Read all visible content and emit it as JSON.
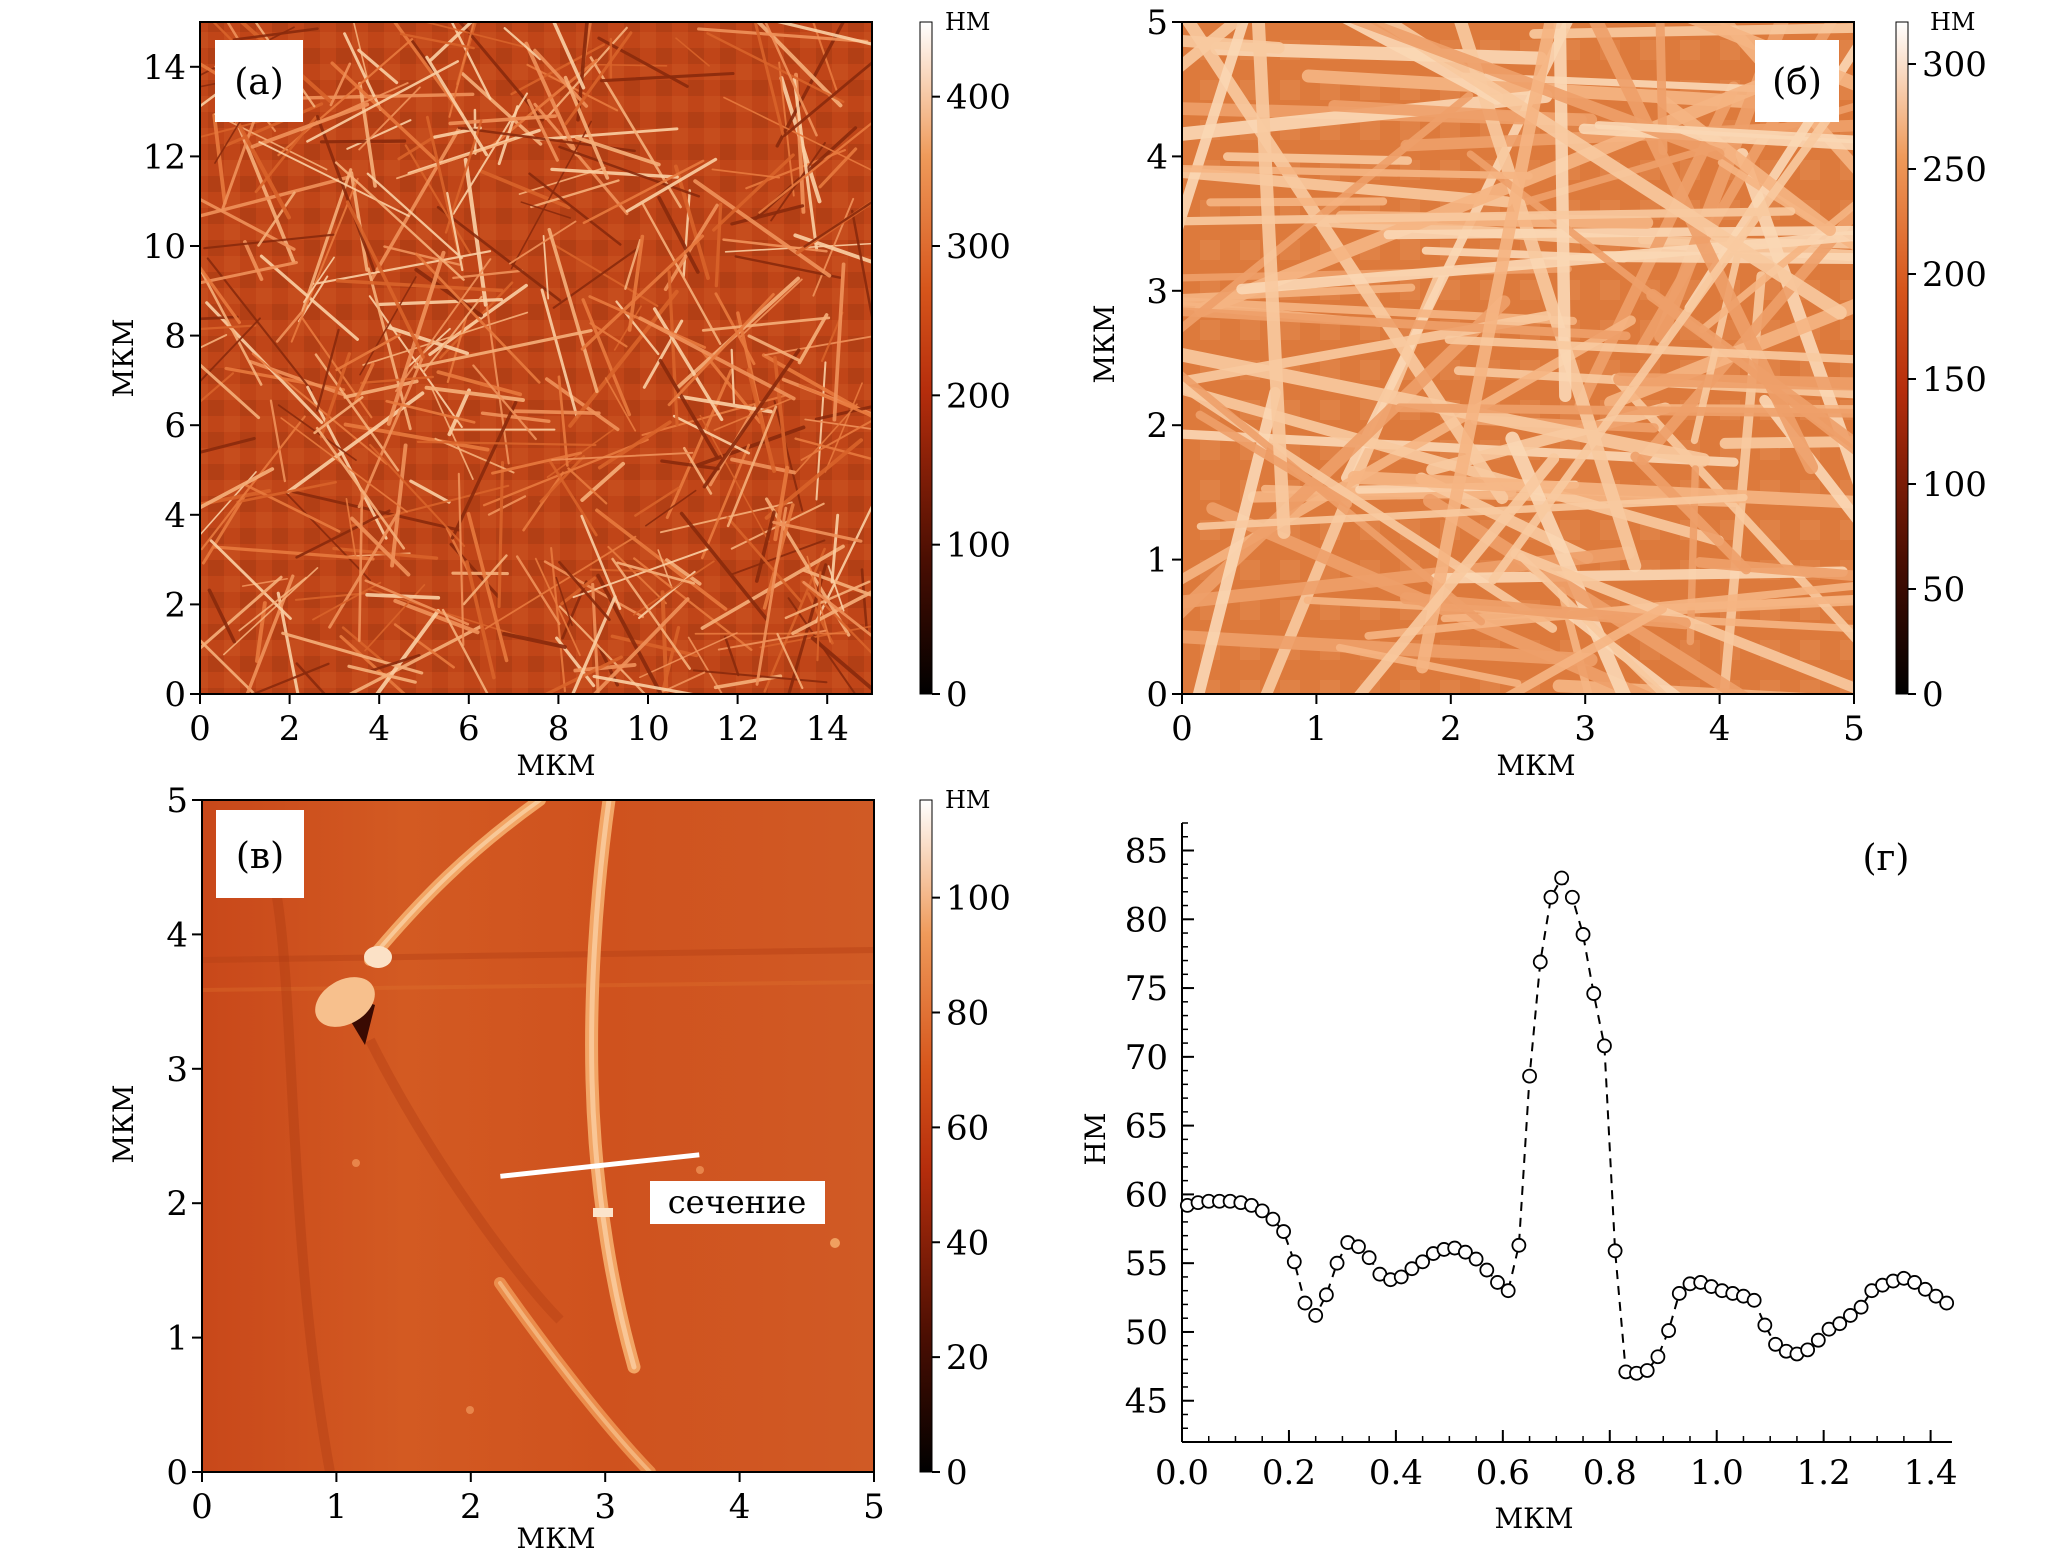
{
  "chart_data": [
    {
      "type": "heatmap",
      "panel_label": "(а)",
      "xlabel": "МКМ",
      "ylabel": "МКМ",
      "xlim": [
        0,
        15
      ],
      "ylim": [
        0,
        15
      ],
      "xticks": [
        "0",
        "2",
        "4",
        "6",
        "8",
        "10",
        "12",
        "14"
      ],
      "yticks": [
        "0",
        "2",
        "4",
        "6",
        "8",
        "10",
        "12",
        "14"
      ],
      "colorbar": {
        "unit": "НМ",
        "range": [
          0,
          450
        ],
        "ticks": [
          "0",
          "100",
          "200",
          "300",
          "400"
        ]
      }
    },
    {
      "type": "heatmap",
      "panel_label": "(б)",
      "xlabel": "МКМ",
      "ylabel": "МКМ",
      "xlim": [
        0,
        5
      ],
      "ylim": [
        0,
        5
      ],
      "xticks": [
        "0",
        "1",
        "2",
        "3",
        "4",
        "5"
      ],
      "yticks": [
        "0",
        "1",
        "2",
        "3",
        "4",
        "5"
      ],
      "colorbar": {
        "unit": "НМ",
        "range": [
          0,
          320
        ],
        "ticks": [
          "0",
          "50",
          "100",
          "150",
          "200",
          "250",
          "300"
        ]
      }
    },
    {
      "type": "heatmap",
      "panel_label": "(в)",
      "xlabel": "МКМ",
      "ylabel": "МКМ",
      "xlim": [
        0,
        5
      ],
      "ylim": [
        0,
        5
      ],
      "xticks": [
        "0",
        "1",
        "2",
        "3",
        "4",
        "5"
      ],
      "yticks": [
        "0",
        "1",
        "2",
        "3",
        "4",
        "5"
      ],
      "colorbar": {
        "unit": "НМ",
        "range": [
          0,
          117
        ],
        "ticks": [
          "0",
          "20",
          "40",
          "60",
          "80",
          "100"
        ]
      },
      "section": {
        "label": "сечение",
        "start": [
          2.22,
          2.2
        ],
        "end": [
          3.7,
          2.36
        ]
      }
    },
    {
      "type": "scatter",
      "panel_label": "(г)",
      "xlabel": "МКМ",
      "ylabel": "НМ",
      "xlim": [
        0,
        1.44
      ],
      "ylim": [
        42,
        87
      ],
      "xticks": [
        "0.0",
        "0.2",
        "0.4",
        "0.6",
        "0.8",
        "1.0",
        "1.2",
        "1.4"
      ],
      "yticks": [
        "45",
        "50",
        "55",
        "60",
        "65",
        "70",
        "75",
        "80",
        "85"
      ],
      "line_style": "dashed",
      "marker": "open-circle",
      "x": [
        0.01,
        0.03,
        0.05,
        0.07,
        0.09,
        0.11,
        0.13,
        0.15,
        0.17,
        0.19,
        0.21,
        0.23,
        0.25,
        0.27,
        0.29,
        0.31,
        0.33,
        0.35,
        0.37,
        0.39,
        0.41,
        0.43,
        0.45,
        0.47,
        0.49,
        0.51,
        0.53,
        0.55,
        0.57,
        0.59,
        0.61,
        0.63,
        0.65,
        0.67,
        0.69,
        0.71,
        0.73,
        0.75,
        0.77,
        0.79,
        0.81,
        0.83,
        0.85,
        0.87,
        0.89,
        0.91,
        0.93,
        0.95,
        0.97,
        0.99,
        1.01,
        1.03,
        1.05,
        1.07,
        1.09,
        1.11,
        1.13,
        1.15,
        1.17,
        1.19,
        1.21,
        1.23,
        1.25,
        1.27,
        1.29,
        1.31,
        1.33,
        1.35,
        1.37,
        1.39,
        1.41,
        1.43
      ],
      "y": [
        59.2,
        59.4,
        59.5,
        59.5,
        59.5,
        59.4,
        59.2,
        58.8,
        58.2,
        57.3,
        55.1,
        52.1,
        51.2,
        52.7,
        55.0,
        56.5,
        56.2,
        55.4,
        54.2,
        53.8,
        54.0,
        54.6,
        55.1,
        55.7,
        56.0,
        56.1,
        55.8,
        55.3,
        54.5,
        53.6,
        53.0,
        56.3,
        68.6,
        76.9,
        81.6,
        83.0,
        81.6,
        78.9,
        74.6,
        70.8,
        55.9,
        47.1,
        47.0,
        47.2,
        48.2,
        50.1,
        52.8,
        53.5,
        53.6,
        53.3,
        53.0,
        52.8,
        52.6,
        52.3,
        50.5,
        49.1,
        48.6,
        48.4,
        48.7,
        49.4,
        50.2,
        50.6,
        51.2,
        51.8,
        53.0,
        53.4,
        53.7,
        53.9,
        53.6,
        53.1,
        52.6,
        52.1
      ]
    }
  ]
}
